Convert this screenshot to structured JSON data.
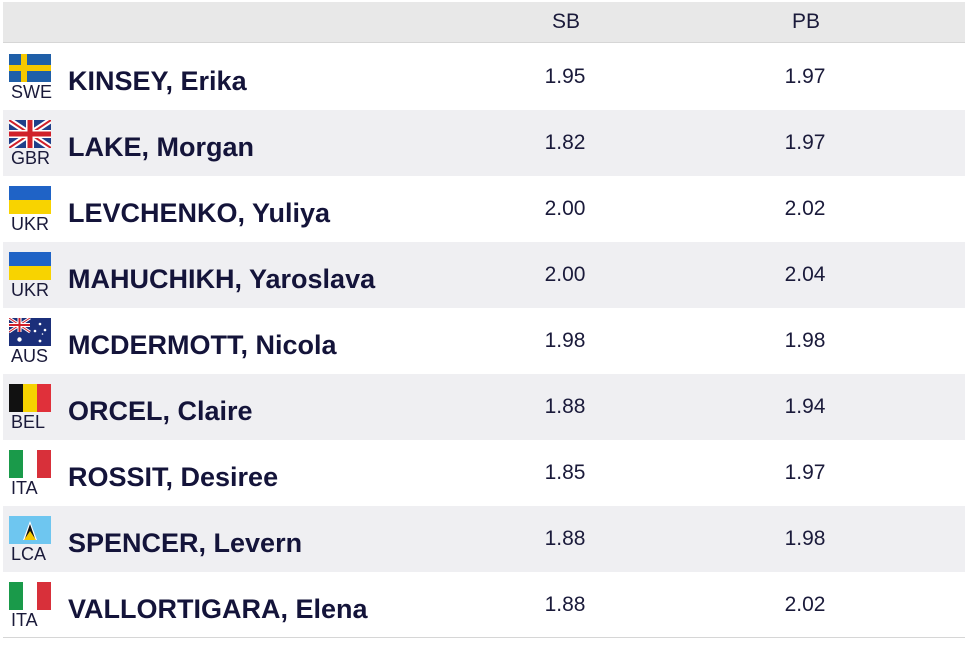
{
  "header": {
    "sb_label": "SB",
    "pb_label": "PB"
  },
  "colors": {
    "header_bg": "#e8e8e8",
    "row_alt_bg": "#efeff2",
    "text": "#14143a"
  },
  "rows": [
    {
      "code": "SWE",
      "flag_icon": "sweden-flag-icon",
      "name": "KINSEY, Erika",
      "sb": "1.95",
      "pb": "1.97"
    },
    {
      "code": "GBR",
      "flag_icon": "great-britain-flag-icon",
      "name": "LAKE, Morgan",
      "sb": "1.82",
      "pb": "1.97"
    },
    {
      "code": "UKR",
      "flag_icon": "ukraine-flag-icon",
      "name": "LEVCHENKO, Yuliya",
      "sb": "2.00",
      "pb": "2.02"
    },
    {
      "code": "UKR",
      "flag_icon": "ukraine-flag-icon",
      "name": "MAHUCHIKH, Yaroslava",
      "sb": "2.00",
      "pb": "2.04"
    },
    {
      "code": "AUS",
      "flag_icon": "australia-flag-icon",
      "name": "MCDERMOTT, Nicola",
      "sb": "1.98",
      "pb": "1.98"
    },
    {
      "code": "BEL",
      "flag_icon": "belgium-flag-icon",
      "name": "ORCEL, Claire",
      "sb": "1.88",
      "pb": "1.94"
    },
    {
      "code": "ITA",
      "flag_icon": "italy-flag-icon",
      "name": "ROSSIT, Desiree",
      "sb": "1.85",
      "pb": "1.97"
    },
    {
      "code": "LCA",
      "flag_icon": "saint-lucia-flag-icon",
      "name": "SPENCER, Levern",
      "sb": "1.88",
      "pb": "1.98"
    },
    {
      "code": "ITA",
      "flag_icon": "italy-flag-icon",
      "name": "VALLORTIGARA, Elena",
      "sb": "1.88",
      "pb": "2.02"
    }
  ]
}
